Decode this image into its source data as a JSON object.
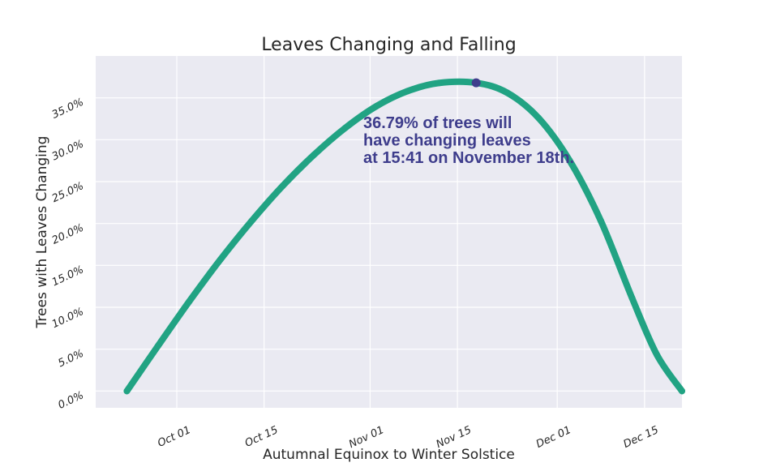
{
  "chart_data": {
    "type": "scatter",
    "title": "Leaves Changing and Falling",
    "xlabel": "Autumnal Equinox to Winter Solstice",
    "ylabel": "Trees with Leaves Changing",
    "x_type": "date",
    "xlim": [
      "2018-09-18",
      "2018-12-21"
    ],
    "ylim": [
      -0.02,
      0.4
    ],
    "x_ticks": [
      {
        "value": "2018-10-01",
        "label": "Oct 01"
      },
      {
        "value": "2018-10-15",
        "label": "Oct 15"
      },
      {
        "value": "2018-11-01",
        "label": "Nov 01"
      },
      {
        "value": "2018-11-15",
        "label": "Nov 15"
      },
      {
        "value": "2018-12-01",
        "label": "Dec 01"
      },
      {
        "value": "2018-12-15",
        "label": "Dec 15"
      }
    ],
    "y_ticks": [
      {
        "value": 0.0,
        "label": "0.0%"
      },
      {
        "value": 0.05,
        "label": "5.0%"
      },
      {
        "value": 0.1,
        "label": "10.0%"
      },
      {
        "value": 0.15,
        "label": "15.0%"
      },
      {
        "value": 0.2,
        "label": "20.0%"
      },
      {
        "value": 0.25,
        "label": "25.0%"
      },
      {
        "value": 0.3,
        "label": "30.0%"
      },
      {
        "value": 0.35,
        "label": "35.0%"
      }
    ],
    "grid": true,
    "series": [
      {
        "color": "#21a383",
        "points": [
          {
            "x": "2018-09-23",
            "y": 0.0
          },
          {
            "x": "2018-09-28",
            "y": 0.054
          },
          {
            "x": "2018-10-03",
            "y": 0.107
          },
          {
            "x": "2018-10-08",
            "y": 0.157
          },
          {
            "x": "2018-10-13",
            "y": 0.203
          },
          {
            "x": "2018-10-18",
            "y": 0.245
          },
          {
            "x": "2018-10-23",
            "y": 0.282
          },
          {
            "x": "2018-10-28",
            "y": 0.314
          },
          {
            "x": "2018-11-02",
            "y": 0.34
          },
          {
            "x": "2018-11-07",
            "y": 0.358
          },
          {
            "x": "2018-11-12",
            "y": 0.3677
          },
          {
            "x": "2018-11-18",
            "y": 0.3679
          },
          {
            "x": "2018-11-23",
            "y": 0.356
          },
          {
            "x": "2018-11-28",
            "y": 0.326
          },
          {
            "x": "2018-12-03",
            "y": 0.275
          },
          {
            "x": "2018-12-08",
            "y": 0.203
          },
          {
            "x": "2018-12-13",
            "y": 0.111
          },
          {
            "x": "2018-12-17",
            "y": 0.043
          },
          {
            "x": "2018-12-21",
            "y": 0.0
          }
        ]
      }
    ],
    "peak": {
      "x": "2018-11-18",
      "y": 0.3679,
      "color": "#3e3d8c"
    },
    "annotation": {
      "lines": [
        "36.79% of trees will",
        "have changing leaves",
        "at 15:41 on November 18th."
      ],
      "color": "#3e3d8c"
    },
    "colors": {
      "background": "#eaeaf2",
      "grid": "#ffffff",
      "text": "#262626"
    }
  }
}
